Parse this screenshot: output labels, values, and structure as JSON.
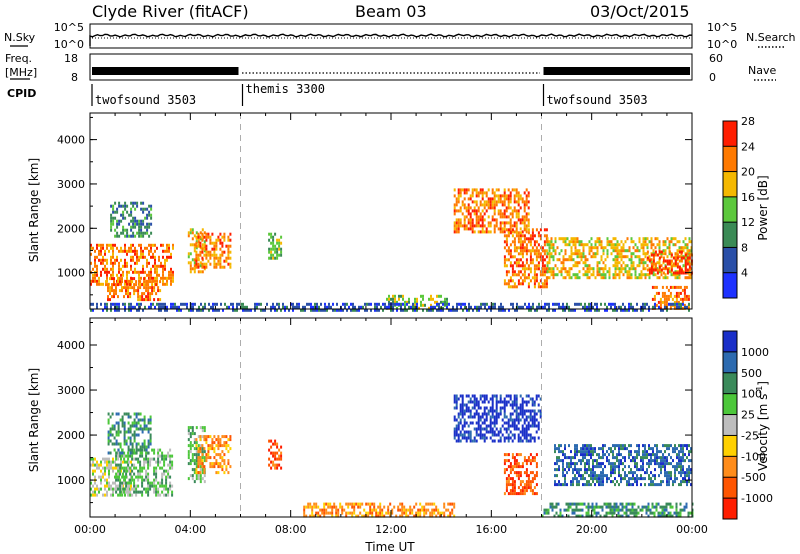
{
  "header": {
    "title": "Clyde River (fitACF)",
    "beam": "Beam 03",
    "date": "03/Oct/2015"
  },
  "noise_panel": {
    "left_label": "N.Sky",
    "left_ticks": [
      "10^5",
      "10^0"
    ],
    "right_ticks": [
      "10^5",
      "10^0"
    ],
    "right_label": "N.Search"
  },
  "freq_panel": {
    "left_label_1": "Freq.",
    "left_label_2": "[MHz]",
    "left_ticks": [
      "18",
      "8"
    ],
    "right_ticks": [
      "60",
      "0"
    ],
    "right_label": "Nave"
  },
  "cpid": {
    "label": "CPID",
    "segments": [
      {
        "name": "twofsound 3503",
        "start_hr": 0,
        "end_hr": 6
      },
      {
        "name": "themis 3300",
        "start_hr": 6,
        "end_hr": 18
      },
      {
        "name": "twofsound 3503",
        "start_hr": 18,
        "end_hr": 24
      }
    ]
  },
  "chart_data": [
    {
      "type": "heatmap",
      "panel": "power",
      "ylabel": "Slant Range [km]",
      "xlabel": "",
      "xlim": [
        0,
        24
      ],
      "ylim": [
        180,
        4600
      ],
      "yticks": [
        "1000",
        "2000",
        "3000",
        "4000"
      ],
      "xticks": [
        "00:00",
        "04:00",
        "08:00",
        "12:00",
        "16:00",
        "20:00",
        "00:00"
      ],
      "colorbar": {
        "label": "Power [dB]",
        "ticks": [
          "4",
          "8",
          "12",
          "16",
          "20",
          "24",
          "28"
        ],
        "colors": [
          "#1e32ff",
          "#2a4fa8",
          "#3a8a55",
          "#5cc83c",
          "#f5b800",
          "#ff7a00",
          "#ff1e00"
        ]
      },
      "regions": [
        {
          "t0": 0.0,
          "t1": 3.3,
          "r0": 750,
          "r1": 1650,
          "c": 5
        },
        {
          "t0": 0.6,
          "t1": 2.8,
          "r0": 400,
          "r1": 900,
          "c": 5
        },
        {
          "t0": 0.8,
          "t1": 2.4,
          "r0": 1800,
          "r1": 2600,
          "c": 2
        },
        {
          "t0": 3.9,
          "t1": 4.6,
          "r0": 1000,
          "r1": 2000,
          "c": 4
        },
        {
          "t0": 4.2,
          "t1": 5.6,
          "r0": 1100,
          "r1": 1900,
          "c": 5
        },
        {
          "t0": 7.1,
          "t1": 7.6,
          "r0": 1300,
          "r1": 1900,
          "c": 3
        },
        {
          "t0": 11.8,
          "t1": 14.2,
          "r0": 200,
          "r1": 500,
          "c": 3
        },
        {
          "t0": 14.5,
          "t1": 17.5,
          "r0": 1900,
          "r1": 2900,
          "c": 5
        },
        {
          "t0": 16.5,
          "t1": 18.2,
          "r0": 700,
          "r1": 2000,
          "c": 5
        },
        {
          "t0": 18.2,
          "t1": 24.0,
          "r0": 900,
          "r1": 1800,
          "c": 4
        },
        {
          "t0": 22.2,
          "t1": 24.0,
          "r0": 1000,
          "r1": 1500,
          "c": 6
        },
        {
          "t0": 22.4,
          "t1": 23.9,
          "r0": 200,
          "r1": 700,
          "c": 5
        },
        {
          "t0": 0.0,
          "t1": 24.0,
          "r0": 180,
          "r1": 320,
          "c": 1
        }
      ]
    },
    {
      "type": "heatmap",
      "panel": "velocity",
      "ylabel": "Slant Range [km]",
      "xlabel": "Time UT",
      "xlim": [
        0,
        24
      ],
      "ylim": [
        180,
        4600
      ],
      "yticks": [
        "1000",
        "2000",
        "3000",
        "4000"
      ],
      "xticks": [
        "00:00",
        "04:00",
        "08:00",
        "12:00",
        "16:00",
        "20:00",
        "00:00"
      ],
      "colorbar": {
        "label": "Velocity [m s^-1]",
        "ticks": [
          "1000",
          "500",
          "100",
          "25",
          "-25",
          "-100",
          "-500",
          "-1000"
        ],
        "colors": [
          "#1a2fc8",
          "#2d6bb0",
          "#3a8a5a",
          "#4cc73a",
          "#bdbdbd",
          "#ffd000",
          "#ff8c1a",
          "#ff5500",
          "#ff1e00"
        ]
      },
      "regions": [
        {
          "t0": 0.0,
          "t1": 1.6,
          "r0": 650,
          "r1": 1500,
          "c": 4
        },
        {
          "t0": 1.0,
          "t1": 3.3,
          "r0": 700,
          "r1": 1700,
          "c": 3
        },
        {
          "t0": 0.7,
          "t1": 2.4,
          "r0": 1600,
          "r1": 2500,
          "c": 2
        },
        {
          "t0": 3.9,
          "t1": 4.6,
          "r0": 1000,
          "r1": 2200,
          "c": 3
        },
        {
          "t0": 4.2,
          "t1": 5.6,
          "r0": 1200,
          "r1": 2000,
          "c": 6
        },
        {
          "t0": 7.1,
          "t1": 7.6,
          "r0": 1300,
          "r1": 1900,
          "c": 7
        },
        {
          "t0": 8.5,
          "t1": 14.5,
          "r0": 180,
          "r1": 500,
          "c": 6
        },
        {
          "t0": 14.5,
          "t1": 18.0,
          "r0": 1900,
          "r1": 2900,
          "c": 0
        },
        {
          "t0": 16.5,
          "t1": 17.8,
          "r0": 700,
          "r1": 1600,
          "c": 7
        },
        {
          "t0": 18.5,
          "t1": 24.0,
          "r0": 900,
          "r1": 1800,
          "c": 1
        },
        {
          "t0": 18.0,
          "t1": 24.0,
          "r0": 180,
          "r1": 500,
          "c": 2
        }
      ]
    }
  ]
}
